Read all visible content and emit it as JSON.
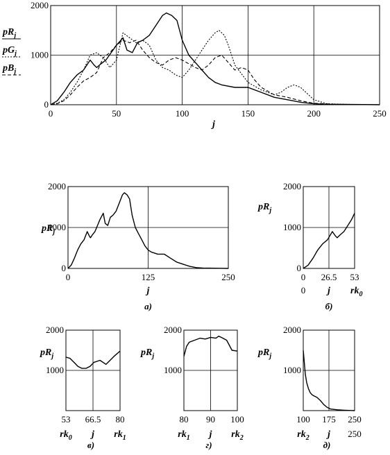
{
  "chart_data": [
    {
      "type": "line",
      "x_name": "j",
      "y_ticks": [
        "0",
        "1000",
        "2000"
      ],
      "x_ticks": [
        "0",
        "50",
        "100",
        "150",
        "200",
        "250"
      ],
      "xlim": [
        0,
        250
      ],
      "ylim": [
        0,
        2000
      ],
      "legend": [
        {
          "name": "pR",
          "sub": "j",
          "dash": "solid"
        },
        {
          "name": "pG",
          "sub": "j",
          "dash": "dot"
        },
        {
          "name": "pB",
          "sub": "j",
          "dash": "dash"
        }
      ],
      "series": [
        {
          "name": "pR",
          "x": [
            0,
            5,
            10,
            15,
            20,
            25,
            30,
            33,
            35,
            38,
            42,
            46,
            50,
            55,
            58,
            62,
            66,
            70,
            75,
            80,
            85,
            88,
            92,
            96,
            100,
            105,
            110,
            115,
            120,
            125,
            130,
            140,
            150,
            160,
            170,
            180,
            190,
            200,
            210,
            230,
            250
          ],
          "y": [
            0,
            80,
            250,
            450,
            600,
            700,
            900,
            800,
            750,
            820,
            900,
            1050,
            1200,
            1350,
            1100,
            1050,
            1250,
            1300,
            1400,
            1600,
            1800,
            1850,
            1800,
            1700,
            1300,
            1000,
            850,
            700,
            550,
            450,
            400,
            350,
            350,
            250,
            150,
            100,
            50,
            20,
            10,
            5,
            0
          ]
        },
        {
          "name": "pG",
          "x": [
            0,
            5,
            10,
            15,
            20,
            25,
            30,
            35,
            40,
            45,
            50,
            55,
            60,
            65,
            70,
            75,
            80,
            85,
            90,
            95,
            100,
            105,
            110,
            115,
            120,
            125,
            128,
            132,
            135,
            140,
            150,
            160,
            170,
            175,
            180,
            185,
            190,
            200,
            210,
            230,
            250
          ],
          "y": [
            0,
            30,
            100,
            250,
            450,
            700,
            1000,
            1050,
            950,
            750,
            900,
            1450,
            1350,
            1250,
            1300,
            1200,
            900,
            750,
            700,
            600,
            550,
            700,
            900,
            1100,
            1300,
            1450,
            1500,
            1400,
            1200,
            800,
            450,
            300,
            200,
            250,
            350,
            400,
            350,
            100,
            20,
            5,
            0
          ]
        },
        {
          "name": "pB",
          "x": [
            0,
            5,
            10,
            15,
            20,
            25,
            30,
            35,
            40,
            45,
            50,
            55,
            60,
            65,
            70,
            75,
            80,
            85,
            90,
            95,
            100,
            110,
            115,
            120,
            125,
            130,
            135,
            140,
            145,
            150,
            155,
            160,
            170,
            180,
            190,
            200,
            220,
            250
          ],
          "y": [
            0,
            20,
            80,
            200,
            350,
            480,
            550,
            650,
            950,
            1050,
            1200,
            1300,
            1250,
            1300,
            1100,
            950,
            850,
            800,
            900,
            950,
            900,
            750,
            700,
            800,
            950,
            1000,
            850,
            700,
            750,
            700,
            500,
            350,
            200,
            150,
            80,
            30,
            5,
            0
          ]
        }
      ]
    },
    {
      "type": "line",
      "caption": "а)",
      "x_name": "j",
      "y_name": "pR",
      "y_sub": "j",
      "y_ticks": [
        "0",
        "1000",
        "2000"
      ],
      "x_ticks": [
        "0",
        "125",
        "250"
      ],
      "xlim": [
        0,
        250
      ],
      "ylim": [
        0,
        2000
      ],
      "series": [
        {
          "name": "pR",
          "x": [
            0,
            5,
            10,
            15,
            20,
            25,
            30,
            33,
            35,
            38,
            42,
            46,
            50,
            55,
            58,
            62,
            66,
            70,
            75,
            80,
            85,
            88,
            92,
            96,
            100,
            105,
            110,
            115,
            120,
            125,
            130,
            140,
            150,
            160,
            170,
            180,
            190,
            200,
            210,
            230,
            250
          ],
          "y": [
            0,
            80,
            250,
            450,
            600,
            700,
            900,
            800,
            750,
            820,
            900,
            1050,
            1200,
            1350,
            1100,
            1050,
            1250,
            1300,
            1400,
            1600,
            1800,
            1850,
            1800,
            1700,
            1300,
            1000,
            850,
            700,
            550,
            450,
            400,
            350,
            350,
            250,
            150,
            100,
            50,
            20,
            10,
            5,
            0
          ]
        }
      ]
    },
    {
      "type": "line",
      "caption": "б)",
      "x_name": "j",
      "y_name": "pR",
      "y_sub": "j",
      "x_extra": "rk",
      "x_extra_sub": "0",
      "y_ticks": [
        "0",
        "1000",
        "2000"
      ],
      "x_ticks": [
        "0",
        "26.5",
        "53"
      ],
      "xlim": [
        0,
        53
      ],
      "ylim": [
        0,
        2000
      ],
      "series": [
        {
          "name": "pR",
          "x": [
            0,
            5,
            10,
            15,
            20,
            25,
            30,
            33,
            35,
            38,
            42,
            46,
            50,
            53
          ],
          "y": [
            0,
            80,
            250,
            450,
            600,
            700,
            900,
            800,
            750,
            820,
            900,
            1050,
            1200,
            1350
          ]
        }
      ]
    },
    {
      "type": "line",
      "caption": "в)",
      "x_name": "j",
      "y_name": "pR",
      "y_sub": "j",
      "x_left": "rk",
      "x_left_sub": "0",
      "x_right": "rk",
      "x_right_sub": "1",
      "y_ticks": [
        "1000",
        "2000"
      ],
      "x_ticks": [
        "53",
        "66.5",
        "80"
      ],
      "xlim": [
        53,
        80
      ],
      "ylim": [
        0,
        2000
      ],
      "series": [
        {
          "name": "pR",
          "x": [
            53,
            55,
            57,
            59,
            61,
            63,
            65,
            67,
            70,
            73,
            75,
            77,
            80
          ],
          "y": [
            1330,
            1300,
            1200,
            1100,
            1050,
            1050,
            1100,
            1200,
            1250,
            1150,
            1250,
            1350,
            1480
          ]
        }
      ]
    },
    {
      "type": "line",
      "caption": "г)",
      "x_name": "j",
      "y_name": "pR",
      "y_sub": "j",
      "x_left": "rk",
      "x_left_sub": "1",
      "x_right": "rk",
      "x_right_sub": "2",
      "y_ticks": [
        "1000",
        "2000"
      ],
      "x_ticks": [
        "80",
        "90",
        "100"
      ],
      "xlim": [
        80,
        100
      ],
      "ylim": [
        0,
        2000
      ],
      "series": [
        {
          "name": "pR",
          "x": [
            80,
            81,
            82,
            84,
            86,
            88,
            90,
            92,
            93,
            94,
            96,
            98,
            100
          ],
          "y": [
            1350,
            1600,
            1700,
            1750,
            1800,
            1780,
            1820,
            1800,
            1850,
            1820,
            1750,
            1500,
            1480
          ]
        }
      ]
    },
    {
      "type": "line",
      "caption": "д)",
      "x_name": "j",
      "y_name": "pR",
      "y_sub": "j",
      "x_left": "rk",
      "x_left_sub": "2",
      "x_right": "250",
      "y_ticks": [
        "1000",
        "2000"
      ],
      "x_ticks": [
        "100",
        "175",
        "250"
      ],
      "xlim": [
        100,
        250
      ],
      "ylim": [
        0,
        2000
      ],
      "series": [
        {
          "name": "pR",
          "x": [
            100,
            103,
            106,
            110,
            115,
            120,
            125,
            130,
            140,
            150,
            160,
            170,
            180,
            200,
            220,
            250
          ],
          "y": [
            1500,
            1200,
            900,
            700,
            550,
            450,
            400,
            370,
            330,
            250,
            150,
            80,
            40,
            20,
            10,
            0
          ]
        }
      ]
    }
  ]
}
